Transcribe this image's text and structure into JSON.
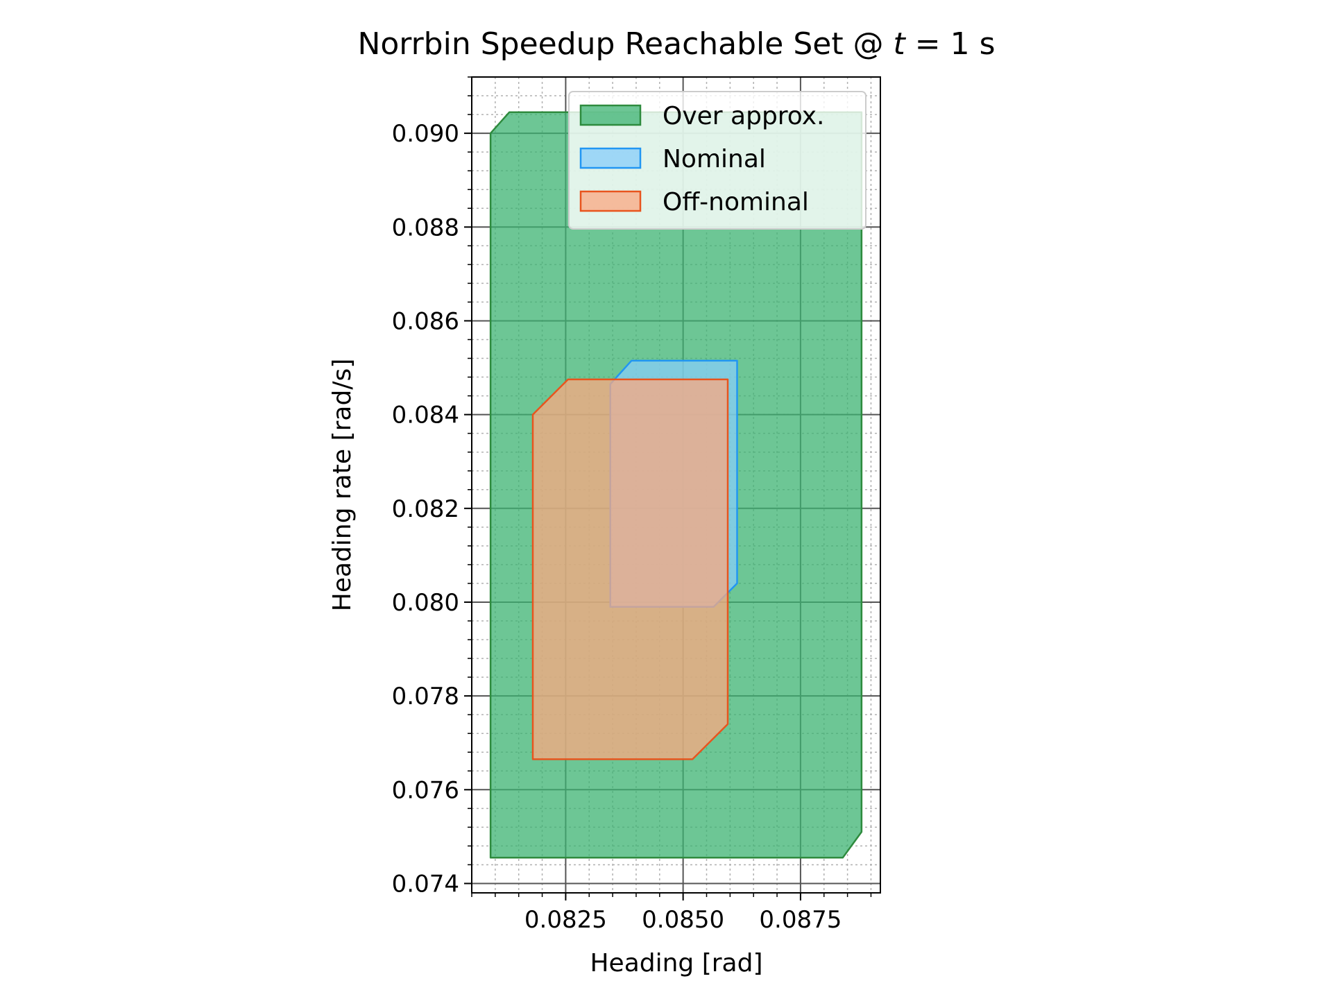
{
  "chart_data": {
    "type": "area",
    "title_main": "Norrbin Speedup Reachable Set @ ",
    "title_var": "t",
    "title_rest": " = 1 s",
    "xlabel": "Heading [rad]",
    "ylabel": "Heading rate [rad/s]",
    "xlim": [
      0.0805,
      0.0892
    ],
    "ylim": [
      0.0738,
      0.0912
    ],
    "xticks": [
      0.0825,
      0.085,
      0.0875
    ],
    "xtick_labels": [
      "0.0825",
      "0.0850",
      "0.0875"
    ],
    "yticks": [
      0.074,
      0.076,
      0.078,
      0.08,
      0.082,
      0.084,
      0.086,
      0.088,
      0.09
    ],
    "ytick_labels": [
      "0.074",
      "0.076",
      "0.078",
      "0.080",
      "0.082",
      "0.084",
      "0.086",
      "0.088",
      "0.090"
    ],
    "grid": true,
    "legend_position": "top-right",
    "series": [
      {
        "name": "Over approx.",
        "fill": "#3cb371",
        "stroke": "#2e8b3e",
        "polygon": [
          [
            0.0809,
            0.09
          ],
          [
            0.0813,
            0.09045
          ],
          [
            0.0888,
            0.09045
          ],
          [
            0.0888,
            0.0751
          ],
          [
            0.0884,
            0.07455
          ],
          [
            0.0809,
            0.07455
          ]
        ]
      },
      {
        "name": "Nominal",
        "fill": "#87cefa",
        "stroke": "#2196f3",
        "polygon": [
          [
            0.08345,
            0.08465
          ],
          [
            0.0839,
            0.08515
          ],
          [
            0.08615,
            0.08515
          ],
          [
            0.08615,
            0.0804
          ],
          [
            0.08565,
            0.0799
          ],
          [
            0.08345,
            0.0799
          ]
        ]
      },
      {
        "name": "Off-nominal",
        "fill": "#fba882",
        "stroke": "#e8541e",
        "polygon": [
          [
            0.0818,
            0.084
          ],
          [
            0.08255,
            0.08475
          ],
          [
            0.08595,
            0.08475
          ],
          [
            0.08595,
            0.0774
          ],
          [
            0.0852,
            0.07665
          ],
          [
            0.0818,
            0.07665
          ]
        ]
      }
    ]
  }
}
